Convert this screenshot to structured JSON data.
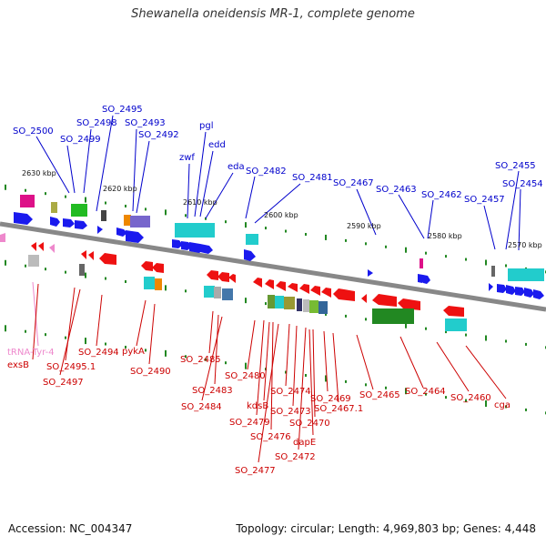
{
  "title": "Shewanella oneidensis MR-1, complete genome",
  "accession": "Accession: NC_004347",
  "topology": "Topology: circular; Length: 4,969,803 bp; Genes: 4,448",
  "colors": {
    "forward_label": "#0000cc",
    "reverse_label": "#cc0000",
    "trna_label": "#ee88cc",
    "backbone": "#888888",
    "tick": "#228822"
  },
  "scale_labels": [
    "2630 kbp",
    "2620 kbp",
    "2610 kbp",
    "2600 kbp",
    "2590 kbp",
    "2580 kbp",
    "2570 kbp"
  ],
  "forward_labels": [
    "SO_2500",
    "SO_2499",
    "SO_2498",
    "SO_2495",
    "SO_2493",
    "SO_2492",
    "zwf",
    "pgl",
    "edd",
    "eda",
    "SO_2482",
    "SO_2481",
    "SO_2467",
    "SO_2463",
    "SO_2462",
    "SO_2457",
    "SO_2455",
    "SO_2454"
  ],
  "reverse_labels": [
    "tRNA-Tyr-4",
    "exsB",
    "SO_2495.1",
    "SO_2497",
    "SO_2494",
    "pykA",
    "SO_2490",
    "SO_2485",
    "SO_2483",
    "SO_2484",
    "SO_2480",
    "SO_2479",
    "kdsB",
    "SO_2476",
    "SO_2477",
    "SO_2474",
    "SO_2473",
    "SO_2472",
    "dapE",
    "SO_2470",
    "SO_2469",
    "SO_2467.1",
    "SO_2465",
    "SO_2464",
    "SO_2460",
    "cga"
  ]
}
